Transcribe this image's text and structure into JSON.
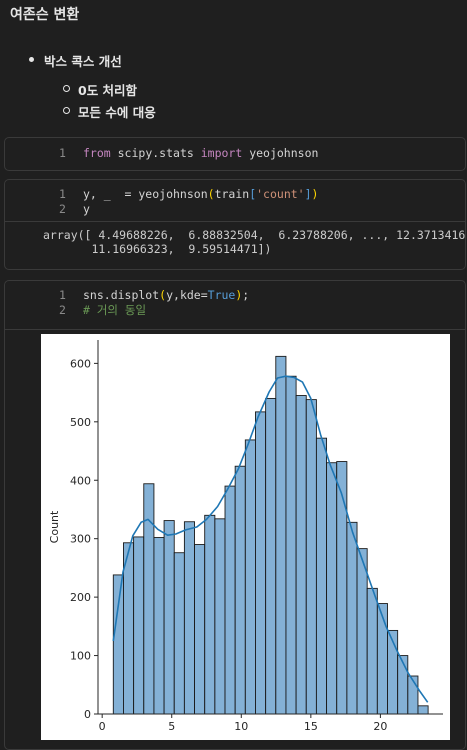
{
  "markdown": {
    "title": "여존슨 변환",
    "bullet": "박스 콕스 개선",
    "sub": [
      "0도 처리함",
      "모든 수에 대응"
    ]
  },
  "cells": [
    {
      "lines": [
        {
          "num": "1",
          "tokens": [
            {
              "t": "from",
              "c": "kw"
            },
            {
              "t": " scipy.stats ",
              "c": ""
            },
            {
              "t": "import",
              "c": "kw"
            },
            {
              "t": " yeojohnson",
              "c": ""
            }
          ]
        }
      ]
    },
    {
      "lines": [
        {
          "num": "1",
          "tokens": [
            {
              "t": "y, _  = yeojohnson",
              "c": ""
            },
            {
              "t": "(",
              "c": "paren"
            },
            {
              "t": "train",
              "c": ""
            },
            {
              "t": "[",
              "c": "bi"
            },
            {
              "t": "'count'",
              "c": "str"
            },
            {
              "t": "]",
              "c": "bi"
            },
            {
              "t": ")",
              "c": "paren"
            }
          ]
        },
        {
          "num": "2",
          "tokens": [
            {
              "t": "y",
              "c": ""
            }
          ]
        }
      ],
      "output": "array([ 4.49688226,  6.88832504,  6.23788206, ..., 12.3713416 ,\n       11.16966323,  9.59514471])"
    },
    {
      "lines": [
        {
          "num": "1",
          "tokens": [
            {
              "t": "sns.displot",
              "c": ""
            },
            {
              "t": "(",
              "c": "paren"
            },
            {
              "t": "y,kde=",
              "c": ""
            },
            {
              "t": "True",
              "c": "bi"
            },
            {
              "t": ")",
              "c": "paren"
            },
            {
              "t": ";",
              "c": ""
            }
          ]
        },
        {
          "num": "2",
          "tokens": [
            {
              "t": "# 거의 동일",
              "c": "cm"
            }
          ]
        }
      ]
    }
  ],
  "chart_data": {
    "type": "bar",
    "subtype": "histogram_with_kde",
    "xlabel": "",
    "ylabel": "Count",
    "xlim": [
      -0.3,
      24.5
    ],
    "ylim": [
      0,
      640
    ],
    "xticks": [
      0,
      5,
      10,
      15,
      20
    ],
    "yticks": [
      0,
      100,
      200,
      300,
      400,
      500,
      600
    ],
    "bar_color": "#6fa3cf",
    "line_color": "#1f77b4",
    "bins": [
      {
        "x0": 0.8,
        "x1": 1.53,
        "count": 238
      },
      {
        "x0": 1.53,
        "x1": 2.26,
        "count": 293
      },
      {
        "x0": 2.26,
        "x1": 2.99,
        "count": 303
      },
      {
        "x0": 2.99,
        "x1": 3.72,
        "count": 394
      },
      {
        "x0": 3.72,
        "x1": 4.45,
        "count": 302
      },
      {
        "x0": 4.45,
        "x1": 5.18,
        "count": 331
      },
      {
        "x0": 5.18,
        "x1": 5.91,
        "count": 276
      },
      {
        "x0": 5.91,
        "x1": 6.64,
        "count": 329
      },
      {
        "x0": 6.64,
        "x1": 7.37,
        "count": 290
      },
      {
        "x0": 7.37,
        "x1": 8.1,
        "count": 340
      },
      {
        "x0": 8.1,
        "x1": 8.83,
        "count": 334
      },
      {
        "x0": 8.83,
        "x1": 9.56,
        "count": 390
      },
      {
        "x0": 9.56,
        "x1": 10.29,
        "count": 424
      },
      {
        "x0": 10.29,
        "x1": 11.02,
        "count": 469
      },
      {
        "x0": 11.02,
        "x1": 11.75,
        "count": 517
      },
      {
        "x0": 11.75,
        "x1": 12.48,
        "count": 540
      },
      {
        "x0": 12.48,
        "x1": 13.21,
        "count": 612
      },
      {
        "x0": 13.21,
        "x1": 13.94,
        "count": 578
      },
      {
        "x0": 13.94,
        "x1": 14.67,
        "count": 545
      },
      {
        "x0": 14.67,
        "x1": 15.4,
        "count": 538
      },
      {
        "x0": 15.4,
        "x1": 16.13,
        "count": 472
      },
      {
        "x0": 16.13,
        "x1": 16.86,
        "count": 430
      },
      {
        "x0": 16.86,
        "x1": 17.59,
        "count": 432
      },
      {
        "x0": 17.59,
        "x1": 18.32,
        "count": 328
      },
      {
        "x0": 18.32,
        "x1": 19.05,
        "count": 283
      },
      {
        "x0": 19.05,
        "x1": 19.78,
        "count": 215
      },
      {
        "x0": 19.78,
        "x1": 20.51,
        "count": 189
      },
      {
        "x0": 20.51,
        "x1": 21.24,
        "count": 143
      },
      {
        "x0": 21.24,
        "x1": 21.97,
        "count": 100
      },
      {
        "x0": 21.97,
        "x1": 22.7,
        "count": 65
      },
      {
        "x0": 22.7,
        "x1": 23.43,
        "count": 14
      }
    ],
    "kde": {
      "x": [
        0.8,
        1.5,
        2.2,
        2.8,
        3.3,
        4.0,
        4.7,
        5.3,
        6.0,
        6.8,
        7.5,
        8.3,
        9.0,
        9.8,
        10.5,
        11.2,
        12.0,
        12.6,
        13.2,
        13.8,
        14.4,
        15.0,
        15.7,
        16.4,
        17.2,
        18.0,
        18.8,
        19.6,
        20.4,
        21.2,
        22.0,
        22.8,
        23.4
      ],
      "y": [
        125,
        243,
        305,
        328,
        333,
        316,
        306,
        308,
        315,
        320,
        333,
        355,
        384,
        420,
        462,
        508,
        551,
        575,
        578,
        576,
        568,
        540,
        478,
        426,
        378,
        311,
        257,
        203,
        150,
        108,
        70,
        40,
        20
      ]
    }
  }
}
